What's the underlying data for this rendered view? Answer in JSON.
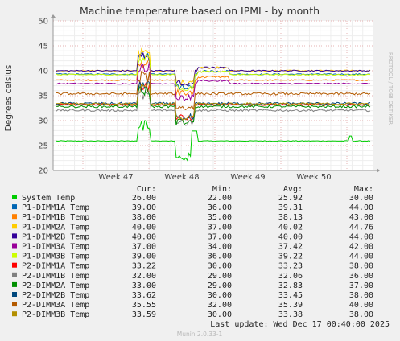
{
  "chart_data": {
    "type": "line",
    "title": "Machine temperature based on IPMI - by month",
    "ylabel": "Degrees celsius",
    "side_label": "RRDTOOL / TOBI OETIKER",
    "ylim": [
      20,
      50
    ],
    "yticks": [
      20,
      25,
      30,
      35,
      40,
      45,
      50
    ],
    "xticks": [
      "Week 47",
      "Week 48",
      "Week 49",
      "Week 50"
    ],
    "grid": true,
    "legend_position": "bottom",
    "columns": [
      "Cur:",
      "Min:",
      "Avg:",
      "Max:"
    ],
    "series": [
      {
        "name": "System Temp",
        "color": "#00cc00",
        "cur": "26.00",
        "min": "22.00",
        "avg": "25.92",
        "max": "30.00"
      },
      {
        "name": "P1-DIMM1A Temp",
        "color": "#0066b3",
        "cur": "39.00",
        "min": "36.00",
        "avg": "39.31",
        "max": "44.00"
      },
      {
        "name": "P1-DIMM1B Temp",
        "color": "#ff8000",
        "cur": "38.00",
        "min": "35.00",
        "avg": "38.13",
        "max": "43.00"
      },
      {
        "name": "P1-DIMM2A Temp",
        "color": "#ffcc00",
        "cur": "40.00",
        "min": "37.00",
        "avg": "40.02",
        "max": "44.76"
      },
      {
        "name": "P1-DIMM2B Temp",
        "color": "#330099",
        "cur": "40.00",
        "min": "37.00",
        "avg": "40.00",
        "max": "44.00"
      },
      {
        "name": "P1-DIMM3A Temp",
        "color": "#990099",
        "cur": "37.00",
        "min": "34.00",
        "avg": "37.42",
        "max": "42.00"
      },
      {
        "name": "P1-DIMM3B Temp",
        "color": "#ccff00",
        "cur": "39.00",
        "min": "36.00",
        "avg": "39.22",
        "max": "44.00"
      },
      {
        "name": "P2-DIMM1A Temp",
        "color": "#ff0000",
        "cur": "33.22",
        "min": "30.00",
        "avg": "33.23",
        "max": "38.00"
      },
      {
        "name": "P2-DIMM1B Temp",
        "color": "#808080",
        "cur": "32.00",
        "min": "29.00",
        "avg": "32.06",
        "max": "36.00"
      },
      {
        "name": "P2-DIMM2A Temp",
        "color": "#008f00",
        "cur": "33.00",
        "min": "29.00",
        "avg": "32.83",
        "max": "37.00"
      },
      {
        "name": "P2-DIMM2B Temp",
        "color": "#00487d",
        "cur": "33.62",
        "min": "30.00",
        "avg": "33.45",
        "max": "38.00"
      },
      {
        "name": "P2-DIMM3A Temp",
        "color": "#b35a00",
        "cur": "35.55",
        "min": "32.00",
        "avg": "35.39",
        "max": "40.00"
      },
      {
        "name": "P2-DIMM3B Temp",
        "color": "#b38f00",
        "cur": "33.59",
        "min": "30.00",
        "avg": "33.38",
        "max": "38.00"
      }
    ]
  },
  "footer": {
    "last_update": "Last update: Wed Dec 17 00:40:00 2025",
    "version": "Munin 2.0.33-1"
  }
}
